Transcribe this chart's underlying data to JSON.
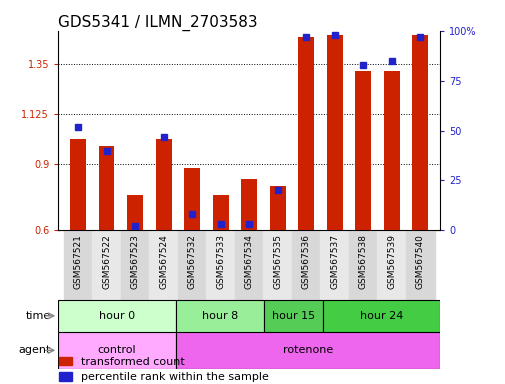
{
  "title": "GDS5341 / ILMN_2703583",
  "samples": [
    "GSM567521",
    "GSM567522",
    "GSM567523",
    "GSM567524",
    "GSM567532",
    "GSM567533",
    "GSM567534",
    "GSM567535",
    "GSM567536",
    "GSM567537",
    "GSM567538",
    "GSM567539",
    "GSM567540"
  ],
  "transformed_count": [
    1.01,
    0.98,
    0.76,
    1.01,
    0.88,
    0.76,
    0.83,
    0.8,
    1.47,
    1.48,
    1.32,
    1.32,
    1.48
  ],
  "percentile_rank": [
    52,
    40,
    2,
    47,
    8,
    3,
    3,
    20,
    97,
    98,
    83,
    85,
    97
  ],
  "ylim_left": [
    0.6,
    1.5
  ],
  "ylim_right": [
    0,
    100
  ],
  "yticks_left": [
    0.6,
    0.9,
    1.125,
    1.35
  ],
  "ytick_labels_left": [
    "0.6",
    "0.9",
    "1.125",
    "1.35"
  ],
  "yticks_right": [
    0,
    25,
    50,
    75,
    100
  ],
  "ytick_labels_right": [
    "0",
    "25",
    "50",
    "75",
    "100%"
  ],
  "time_groups": [
    {
      "label": "hour 0",
      "start": 0,
      "end": 4,
      "color": "#ccffcc"
    },
    {
      "label": "hour 8",
      "start": 4,
      "end": 7,
      "color": "#99ee99"
    },
    {
      "label": "hour 15",
      "start": 7,
      "end": 9,
      "color": "#55cc55"
    },
    {
      "label": "hour 24",
      "start": 9,
      "end": 13,
      "color": "#44cc44"
    }
  ],
  "agent_groups": [
    {
      "label": "control",
      "start": 0,
      "end": 4,
      "color": "#ffaaff"
    },
    {
      "label": "rotenone",
      "start": 4,
      "end": 13,
      "color": "#ee66ee"
    }
  ],
  "bar_color": "#cc2200",
  "dot_color": "#2222cc",
  "bar_width": 0.55,
  "bg_color": "#ffffff",
  "title_fontsize": 11,
  "tick_fontsize": 7,
  "label_fontsize": 8,
  "legend_fontsize": 8
}
